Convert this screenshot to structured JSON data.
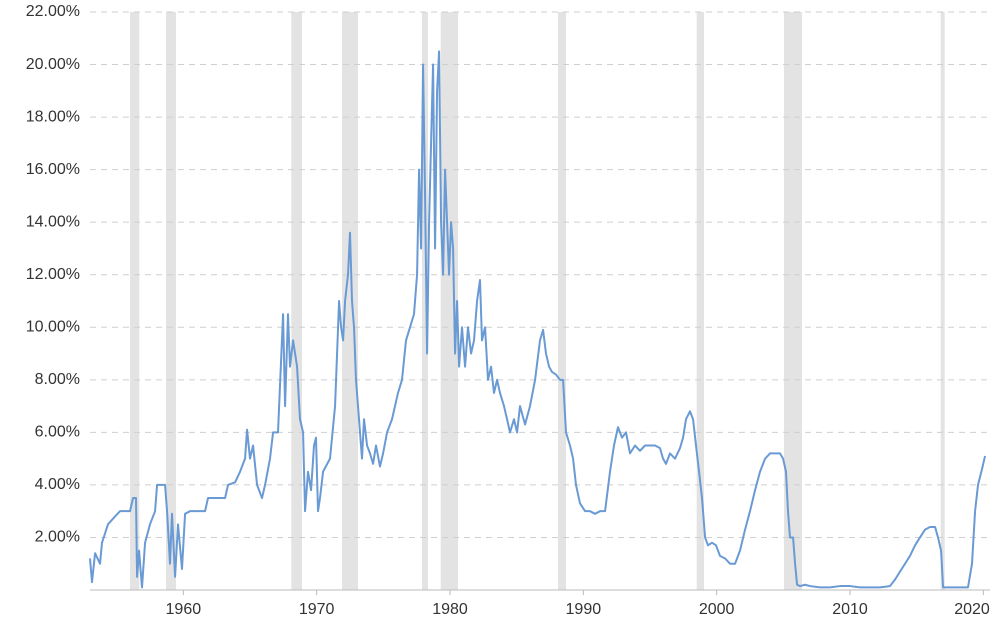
{
  "chart_data": {
    "type": "line",
    "xlim": [
      1953,
      2020.5
    ],
    "xticks": [
      1960,
      1970,
      1980,
      1990,
      2000,
      2010,
      2020
    ],
    "ylim": [
      0,
      22
    ],
    "yticks": [
      {
        "value": 2,
        "label": "2.00%"
      },
      {
        "value": 4,
        "label": "4.00%"
      },
      {
        "value": 6,
        "label": "6.00%"
      },
      {
        "value": 8,
        "label": "8.00%"
      },
      {
        "value": 10,
        "label": "10.00%"
      },
      {
        "value": 12,
        "label": "12.00%"
      },
      {
        "value": 14,
        "label": "14.00%"
      },
      {
        "value": 16,
        "label": "16.00%"
      },
      {
        "value": 18,
        "label": "18.00%"
      },
      {
        "value": 20,
        "label": "20.00%"
      },
      {
        "value": 22,
        "label": "22.00%"
      }
    ],
    "grid": true,
    "recession_color": "#e3e3e3",
    "recessions": [
      [
        1956.0,
        1956.7
      ],
      [
        1958.7,
        1959.45
      ],
      [
        1968.1,
        1968.9
      ],
      [
        1971.9,
        1973.1
      ],
      [
        1977.9,
        1978.35
      ],
      [
        1979.3,
        1980.6
      ],
      [
        1988.1,
        1988.7
      ],
      [
        1998.5,
        1999.05
      ],
      [
        2005.05,
        2006.4
      ],
      [
        2016.8,
        2017.1
      ]
    ],
    "series": [
      {
        "color": "#6a9ad4",
        "x": [
          1953.0,
          1953.15,
          1953.38,
          1953.75,
          1953.9,
          1954.35,
          1954.88,
          1955.25,
          1956.0,
          1956.23,
          1956.45,
          1956.53,
          1956.68,
          1956.9,
          1957.13,
          1957.5,
          1957.88,
          1958.03,
          1958.63,
          1958.78,
          1959.0,
          1959.15,
          1959.38,
          1959.6,
          1959.9,
          1960.13,
          1960.5,
          1961.63,
          1961.85,
          1963.13,
          1963.35,
          1963.88,
          1964.25,
          1964.63,
          1964.78,
          1965.0,
          1965.23,
          1965.53,
          1965.9,
          1966.13,
          1966.5,
          1966.73,
          1967.1,
          1967.48,
          1967.63,
          1967.85,
          1968.0,
          1968.23,
          1968.53,
          1968.75,
          1968.98,
          1969.13,
          1969.35,
          1969.58,
          1969.8,
          1969.95,
          1970.1,
          1970.25,
          1970.48,
          1971.0,
          1971.38,
          1971.53,
          1971.68,
          1971.83,
          1971.98,
          1972.13,
          1972.35,
          1972.5,
          1972.65,
          1972.8,
          1972.95,
          1973.1,
          1973.25,
          1973.4,
          1973.55,
          1973.78,
          1974.0,
          1974.23,
          1974.45,
          1974.75,
          1974.98,
          1975.28,
          1975.65,
          1976.1,
          1976.4,
          1976.7,
          1977.0,
          1977.3,
          1977.53,
          1977.68,
          1977.83,
          1977.98,
          1978.13,
          1978.28,
          1978.43,
          1978.58,
          1978.73,
          1978.88,
          1979.03,
          1979.18,
          1979.33,
          1979.48,
          1979.63,
          1979.78,
          1979.93,
          1980.08,
          1980.23,
          1980.38,
          1980.53,
          1980.68,
          1980.9,
          1981.13,
          1981.35,
          1981.58,
          1981.8,
          1982.03,
          1982.25,
          1982.4,
          1982.63,
          1982.85,
          1983.08,
          1983.3,
          1983.53,
          1983.75,
          1984.05,
          1984.28,
          1984.5,
          1984.8,
          1985.03,
          1985.25,
          1985.63,
          1986.0,
          1986.38,
          1986.75,
          1986.98,
          1987.2,
          1987.43,
          1987.65,
          1987.95,
          1988.25,
          1988.48,
          1988.7,
          1989.0,
          1989.23,
          1989.45,
          1989.75,
          1990.13,
          1990.5,
          1990.88,
          1991.25,
          1991.63,
          1992.0,
          1992.3,
          1992.6,
          1992.9,
          1993.2,
          1993.5,
          1993.88,
          1994.25,
          1994.63,
          1995.0,
          1995.38,
          1995.75,
          1995.98,
          1996.2,
          1996.5,
          1996.88,
          1997.25,
          1997.48,
          1997.7,
          1998.0,
          1998.23,
          1998.45,
          1998.68,
          1998.9,
          1999.13,
          1999.35,
          1999.65,
          1999.95,
          2000.25,
          2000.63,
          2001.0,
          2001.38,
          2001.75,
          2002.13,
          2002.5,
          2002.88,
          2003.25,
          2003.63,
          2004.0,
          2004.38,
          2004.75,
          2004.98,
          2005.2,
          2005.35,
          2005.5,
          2005.73,
          2005.88,
          2006.03,
          2006.25,
          2006.63,
          2007.0,
          2007.75,
          2008.5,
          2009.25,
          2010.0,
          2010.75,
          2011.5,
          2012.25,
          2013.0,
          2013.38,
          2013.75,
          2014.13,
          2014.5,
          2014.88,
          2015.25,
          2015.63,
          2016.0,
          2016.38,
          2016.6,
          2016.83,
          2016.98,
          2017.5,
          2018.25,
          2018.85,
          2019.15,
          2019.38,
          2019.6,
          2019.9,
          2020.13
        ],
        "values": [
          1.2,
          0.3,
          1.4,
          1.0,
          1.8,
          2.5,
          2.8,
          3.0,
          3.0,
          3.5,
          3.5,
          0.5,
          1.5,
          0.1,
          1.8,
          2.5,
          3.0,
          4.0,
          4.0,
          3.0,
          1.0,
          2.9,
          0.5,
          2.5,
          0.8,
          2.9,
          3.0,
          3.0,
          3.5,
          3.5,
          4.0,
          4.1,
          4.5,
          5.0,
          6.1,
          5.0,
          5.5,
          4.0,
          3.5,
          4.0,
          5.0,
          6.0,
          6.0,
          10.5,
          7.0,
          10.5,
          8.5,
          9.5,
          8.5,
          6.5,
          6.0,
          3.0,
          4.5,
          3.8,
          5.5,
          5.8,
          3.0,
          3.5,
          4.5,
          5.0,
          7.0,
          9.0,
          11.0,
          10.0,
          9.5,
          11.0,
          12.0,
          13.6,
          11.0,
          10.0,
          8.0,
          7.0,
          6.0,
          5.0,
          6.5,
          5.5,
          5.2,
          4.8,
          5.5,
          4.7,
          5.2,
          6.0,
          6.5,
          7.5,
          8.0,
          9.5,
          10.0,
          10.5,
          12.0,
          16.0,
          13.0,
          20.0,
          15.0,
          9.0,
          14.0,
          17.0,
          20.0,
          13.0,
          19.0,
          20.5,
          14.0,
          12.0,
          16.0,
          14.0,
          12.0,
          14.0,
          13.0,
          9.0,
          11.0,
          8.5,
          10.0,
          8.5,
          10.0,
          9.0,
          9.5,
          11.0,
          11.8,
          9.5,
          10.0,
          8.0,
          8.5,
          7.5,
          8.0,
          7.5,
          7.0,
          6.5,
          6.0,
          6.5,
          6.0,
          7.0,
          6.3,
          7.0,
          8.0,
          9.5,
          9.9,
          9.0,
          8.5,
          8.3,
          8.2,
          8.0,
          8.0,
          6.0,
          5.5,
          5.0,
          4.0,
          3.3,
          3.0,
          3.0,
          2.9,
          3.0,
          3.0,
          4.5,
          5.5,
          6.2,
          5.8,
          6.0,
          5.2,
          5.5,
          5.3,
          5.5,
          5.5,
          5.5,
          5.4,
          5.0,
          4.8,
          5.2,
          5.0,
          5.4,
          5.8,
          6.5,
          6.8,
          6.5,
          5.5,
          4.5,
          3.5,
          2.0,
          1.7,
          1.8,
          1.7,
          1.3,
          1.2,
          1.0,
          1.0,
          1.5,
          2.3,
          3.0,
          3.8,
          4.5,
          5.0,
          5.2,
          5.2,
          5.2,
          5.0,
          4.5,
          3.0,
          2.0,
          2.0,
          1.0,
          0.2,
          0.15,
          0.2,
          0.15,
          0.1,
          0.1,
          0.15,
          0.15,
          0.1,
          0.1,
          0.1,
          0.15,
          0.4,
          0.7,
          1.0,
          1.3,
          1.7,
          2.0,
          2.3,
          2.4,
          2.4,
          2.0,
          1.5,
          0.1,
          0.1,
          0.1,
          0.1,
          1.0,
          3.0,
          4.0,
          4.6,
          5.1
        ]
      }
    ]
  }
}
